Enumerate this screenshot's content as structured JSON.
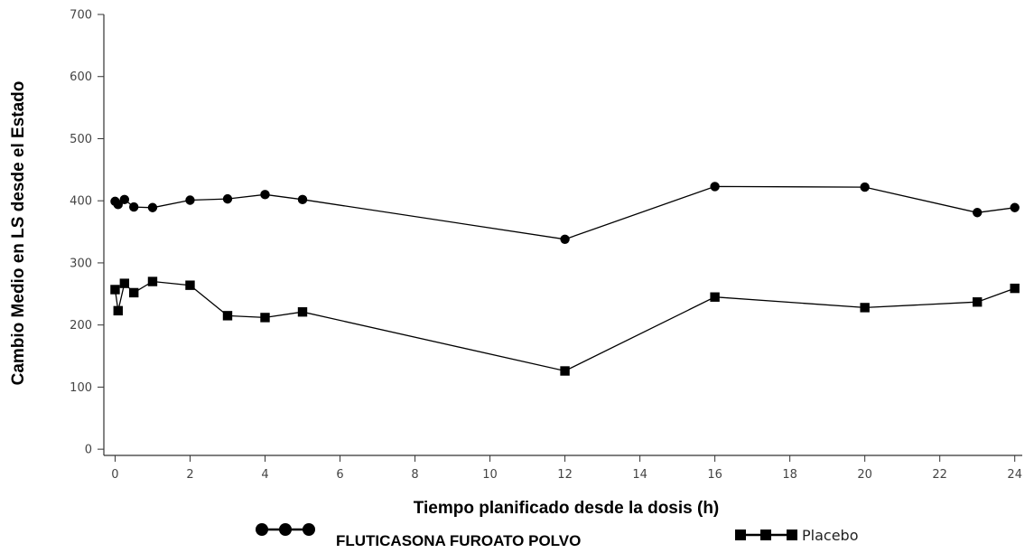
{
  "chart_data": {
    "type": "line",
    "title": "",
    "xlabel": "Tiempo planificado desde la dosis (h)",
    "ylabel": "Cambio Medio en LS desde el Estado",
    "xlim": [
      -0.3,
      24.2
    ],
    "ylim": [
      -10,
      700
    ],
    "x_ticks": [
      0,
      2,
      4,
      6,
      8,
      10,
      12,
      14,
      16,
      18,
      20,
      22,
      24
    ],
    "y_ticks": [
      0,
      100,
      200,
      300,
      400,
      500,
      600,
      700
    ],
    "grid": false,
    "legend_position": "bottom",
    "series": [
      {
        "name": "FLUTICASONA FUROATO POLVO",
        "marker": "circle",
        "color": "#000000",
        "points": [
          {
            "x": 0,
            "y": 399
          },
          {
            "x": 0.08,
            "y": 394
          },
          {
            "x": 0.25,
            "y": 402
          },
          {
            "x": 0.5,
            "y": 390
          },
          {
            "x": 1,
            "y": 389
          },
          {
            "x": 2,
            "y": 401
          },
          {
            "x": 3,
            "y": 403
          },
          {
            "x": 4,
            "y": 410
          },
          {
            "x": 5,
            "y": 402
          },
          {
            "x": 12,
            "y": 338
          },
          {
            "x": 16,
            "y": 423
          },
          {
            "x": 20,
            "y": 422
          },
          {
            "x": 23,
            "y": 381
          },
          {
            "x": 24,
            "y": 389
          }
        ]
      },
      {
        "name": "Placebo",
        "marker": "square",
        "color": "#000000",
        "points": [
          {
            "x": 0,
            "y": 257
          },
          {
            "x": 0.08,
            "y": 223
          },
          {
            "x": 0.25,
            "y": 267
          },
          {
            "x": 0.5,
            "y": 252
          },
          {
            "x": 1,
            "y": 270
          },
          {
            "x": 2,
            "y": 264
          },
          {
            "x": 3,
            "y": 215
          },
          {
            "x": 4,
            "y": 212
          },
          {
            "x": 5,
            "y": 221
          },
          {
            "x": 12,
            "y": 126
          },
          {
            "x": 16,
            "y": 245
          },
          {
            "x": 20,
            "y": 228
          },
          {
            "x": 23,
            "y": 237
          },
          {
            "x": 24,
            "y": 259
          }
        ]
      }
    ]
  }
}
